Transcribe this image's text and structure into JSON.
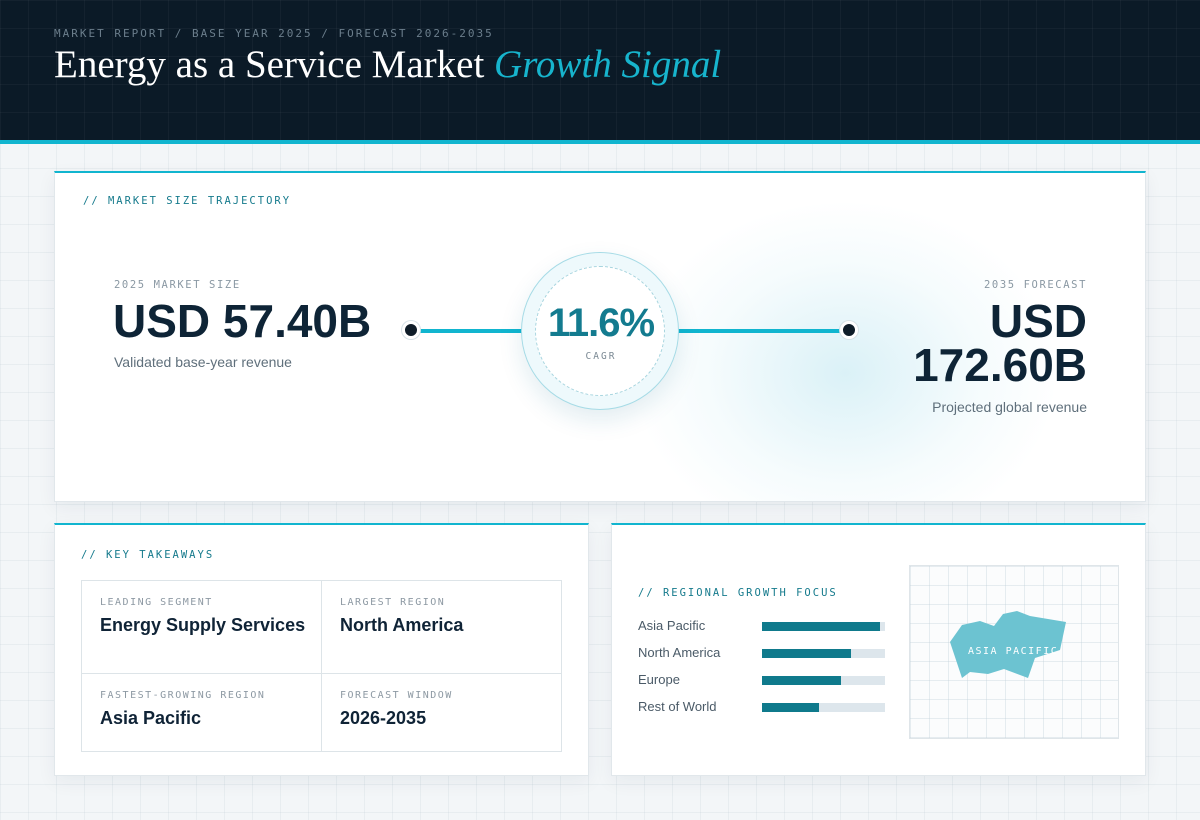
{
  "header": {
    "eyebrow": "MARKET REPORT / BASE YEAR 2025 / FORECAST 2026-2035",
    "title_main": "Energy as a Service Market",
    "title_accent": "Growth Signal"
  },
  "trajectory": {
    "section_label": "// MARKET SIZE TRAJECTORY",
    "start": {
      "label": "2025 MARKET SIZE",
      "value": "USD 57.40B",
      "caption": "Validated base-year revenue"
    },
    "cagr": {
      "value": "11.6%",
      "label": "CAGR"
    },
    "end": {
      "label": "2035 FORECAST",
      "value": "USD 172.60B",
      "caption": "Projected global revenue"
    }
  },
  "takeaways": {
    "section_label": "// KEY TAKEAWAYS",
    "items": [
      {
        "key": "LEADING SEGMENT",
        "value": "Energy Supply Services"
      },
      {
        "key": "LARGEST REGION",
        "value": "North America"
      },
      {
        "key": "FASTEST-GROWING REGION",
        "value": "Asia Pacific"
      },
      {
        "key": "FORECAST WINDOW",
        "value": "2026-2035"
      }
    ]
  },
  "regional": {
    "section_label": "// REGIONAL GROWTH FOCUS",
    "bars": [
      {
        "name": "Asia Pacific",
        "fraction": 0.96
      },
      {
        "name": "North America",
        "fraction": 0.72
      },
      {
        "name": "Europe",
        "fraction": 0.64
      },
      {
        "name": "Rest of World",
        "fraction": 0.46
      }
    ],
    "map_label": "ASIA PACIFIC",
    "colors": {
      "bar": "#0f7a8c",
      "track": "#dde6ec",
      "map_shape": "#6cc3d1"
    }
  }
}
